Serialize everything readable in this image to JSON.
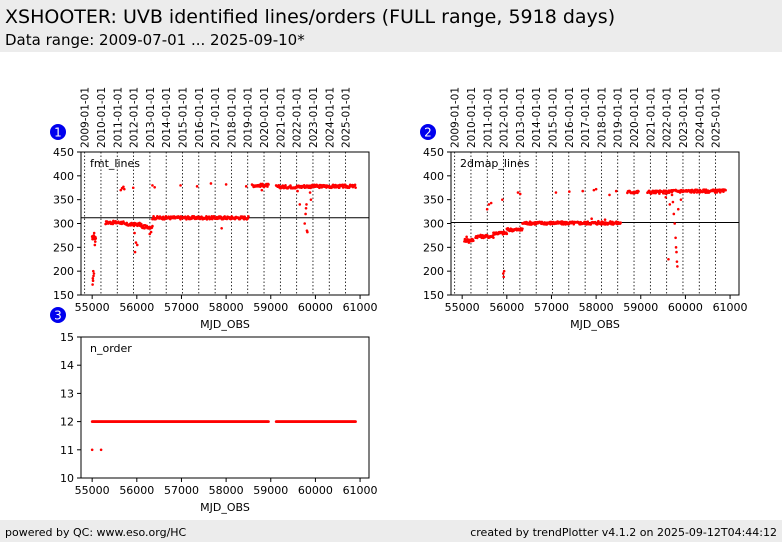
{
  "header": {
    "title": "XSHOOTER: UVB identified lines/orders (FULL range, 5918 days)",
    "subtitle": "Data range: 2009-07-01 ... 2025-09-10*"
  },
  "footer": {
    "left": "powered by QC: www.eso.org/HC",
    "right": "created by trendPlotter v4.1.2 on 2025-09-12T04:44:12"
  },
  "colors": {
    "points": "#ff0000",
    "badge": "#0000ee",
    "header_bg": "#ececec"
  },
  "chart_data": [
    {
      "id": "1",
      "type": "scatter",
      "label": "fmt_lines",
      "xlabel": "MJD_OBS",
      "xlim": [
        54750,
        61200
      ],
      "ylim": [
        150,
        450
      ],
      "xticks": [
        55000,
        56000,
        57000,
        58000,
        59000,
        60000,
        61000
      ],
      "yticks": [
        150,
        200,
        250,
        300,
        350,
        400,
        450
      ],
      "reference_line": 312,
      "year_markers": [
        "2009-01-01",
        "2010-01-01",
        "2011-01-01",
        "2012-01-01",
        "2013-01-01",
        "2014-01-01",
        "2015-01-01",
        "2016-01-01",
        "2017-01-01",
        "2018-01-01",
        "2019-01-01",
        "2020-01-01",
        "2021-01-01",
        "2022-01-01",
        "2023-01-01",
        "2024-01-01",
        "2025-01-01"
      ],
      "segments": [
        {
          "x": [
            55000,
            55080
          ],
          "y": 270
        },
        {
          "x": [
            55300,
            55700
          ],
          "y": 302
        },
        {
          "x": [
            55700,
            56100
          ],
          "y": 298
        },
        {
          "x": [
            56100,
            56350
          ],
          "y": 293
        },
        {
          "x": [
            56350,
            58500
          ],
          "y": 312
        },
        {
          "x": [
            58580,
            58950
          ],
          "y": 380
        },
        {
          "x": [
            59120,
            59700
          ],
          "y": 377
        },
        {
          "x": [
            59700,
            60900
          ],
          "y": 378
        }
      ],
      "points": [
        [
          55010,
          172
        ],
        [
          55020,
          180
        ],
        [
          55030,
          190
        ],
        [
          55040,
          195
        ],
        [
          55015,
          185
        ],
        [
          55025,
          200
        ],
        [
          55060,
          255
        ],
        [
          55070,
          262
        ],
        [
          55045,
          280
        ],
        [
          55035,
          275
        ],
        [
          55640,
          370
        ],
        [
          55670,
          374
        ],
        [
          55700,
          377
        ],
        [
          55720,
          372
        ],
        [
          55920,
          375
        ],
        [
          56350,
          380
        ],
        [
          56400,
          376
        ],
        [
          56980,
          380
        ],
        [
          57350,
          378
        ],
        [
          57660,
          384
        ],
        [
          58000,
          382
        ],
        [
          58450,
          378
        ],
        [
          55960,
          240
        ],
        [
          55980,
          260
        ],
        [
          56010,
          255
        ],
        [
          55950,
          280
        ],
        [
          56290,
          278
        ],
        [
          56320,
          282
        ],
        [
          59760,
          300
        ],
        [
          59780,
          320
        ],
        [
          59790,
          332
        ],
        [
          59800,
          340
        ],
        [
          59810,
          285
        ],
        [
          59820,
          282
        ],
        [
          59900,
          350
        ],
        [
          59880,
          365
        ],
        [
          59600,
          368
        ],
        [
          59650,
          340
        ],
        [
          57900,
          290
        ],
        [
          58800,
          370
        ]
      ]
    },
    {
      "id": "2",
      "type": "scatter",
      "label": "2dmap_lines",
      "xlabel": "MJD_OBS",
      "xlim": [
        54750,
        61200
      ],
      "ylim": [
        150,
        450
      ],
      "xticks": [
        55000,
        56000,
        57000,
        58000,
        59000,
        60000,
        61000
      ],
      "yticks": [
        150,
        200,
        250,
        300,
        350,
        400,
        450
      ],
      "reference_line": 302,
      "year_markers": [
        "2009-01-01",
        "2010-01-01",
        "2011-01-01",
        "2012-01-01",
        "2013-01-01",
        "2014-01-01",
        "2015-01-01",
        "2016-01-01",
        "2017-01-01",
        "2018-01-01",
        "2019-01-01",
        "2020-01-01",
        "2021-01-01",
        "2022-01-01",
        "2023-01-01",
        "2024-01-01",
        "2025-01-01"
      ],
      "segments": [
        {
          "x": [
            55050,
            55250
          ],
          "y": 265
        },
        {
          "x": [
            55300,
            55700
          ],
          "y": 273
        },
        {
          "x": [
            55700,
            56000
          ],
          "y": 280
        },
        {
          "x": [
            56000,
            56350
          ],
          "y": 287
        },
        {
          "x": [
            56350,
            58550
          ],
          "y": 301
        },
        {
          "x": [
            58700,
            58950
          ],
          "y": 366
        },
        {
          "x": [
            59150,
            59650
          ],
          "y": 366
        },
        {
          "x": [
            59650,
            60900
          ],
          "y": 368
        }
      ],
      "points": [
        [
          55100,
          272
        ],
        [
          55150,
          260
        ],
        [
          55560,
          330
        ],
        [
          55600,
          340
        ],
        [
          55650,
          343
        ],
        [
          55900,
          350
        ],
        [
          55920,
          195
        ],
        [
          55930,
          188
        ],
        [
          55940,
          200
        ],
        [
          56250,
          365
        ],
        [
          56300,
          362
        ],
        [
          57100,
          365
        ],
        [
          57400,
          367
        ],
        [
          57700,
          368
        ],
        [
          57950,
          370
        ],
        [
          58000,
          372
        ],
        [
          58300,
          360
        ],
        [
          58450,
          368
        ],
        [
          57900,
          310
        ],
        [
          58050,
          305
        ],
        [
          58200,
          308
        ],
        [
          59700,
          360
        ],
        [
          59720,
          345
        ],
        [
          59740,
          320
        ],
        [
          59760,
          300
        ],
        [
          59780,
          270
        ],
        [
          59790,
          250
        ],
        [
          59800,
          240
        ],
        [
          59810,
          220
        ],
        [
          59820,
          210
        ],
        [
          59840,
          330
        ],
        [
          59620,
          225
        ],
        [
          59900,
          350
        ],
        [
          59650,
          340
        ],
        [
          59560,
          355
        ]
      ]
    },
    {
      "id": "3",
      "type": "scatter",
      "label": "n_order",
      "xlabel": "MJD_OBS",
      "xlim": [
        54750,
        61200
      ],
      "ylim": [
        10,
        15
      ],
      "xticks": [
        55000,
        56000,
        57000,
        58000,
        59000,
        60000,
        61000
      ],
      "yticks": [
        10,
        11,
        12,
        13,
        14,
        15
      ],
      "reference_line": null,
      "year_markers": [],
      "segments": [
        {
          "x": [
            55000,
            58950
          ],
          "y": 12
        },
        {
          "x": [
            59120,
            60900
          ],
          "y": 12
        }
      ],
      "points": [
        [
          55000,
          11
        ],
        [
          55200,
          11
        ]
      ]
    }
  ]
}
